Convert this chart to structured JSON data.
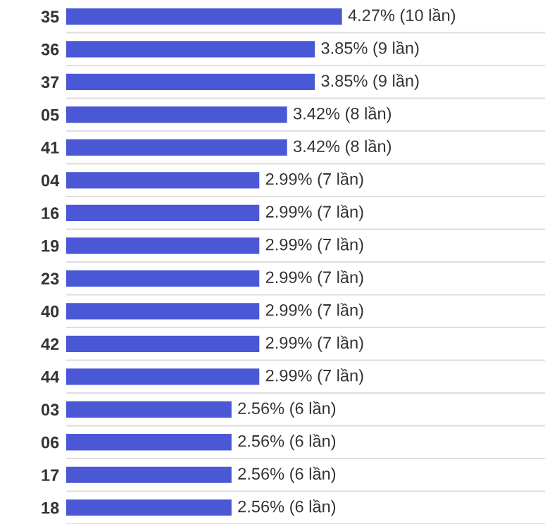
{
  "chart_data": {
    "type": "bar",
    "orientation": "horizontal",
    "categories": [
      "35",
      "36",
      "37",
      "05",
      "41",
      "04",
      "16",
      "19",
      "23",
      "40",
      "42",
      "44",
      "03",
      "06",
      "17",
      "18"
    ],
    "values": [
      4.27,
      3.85,
      3.85,
      3.42,
      3.42,
      2.99,
      2.99,
      2.99,
      2.99,
      2.99,
      2.99,
      2.99,
      2.56,
      2.56,
      2.56,
      2.56
    ],
    "value_labels": [
      "4.27% (10 lần)",
      "3.85% (9 lần)",
      "3.85% (9 lần)",
      "3.42% (8 lần)",
      "3.42% (8 lần)",
      "2.99% (7 lần)",
      "2.99% (7 lần)",
      "2.99% (7 lần)",
      "2.99% (7 lần)",
      "2.99% (7 lần)",
      "2.99% (7 lần)",
      "2.99% (7 lần)",
      "2.56% (6 lần)",
      "2.56% (6 lần)",
      "2.56% (6 lần)",
      "2.56% (6 lần)"
    ],
    "color": "#4b58d6",
    "tick_labels": "y",
    "grid": false,
    "legend": false
  }
}
